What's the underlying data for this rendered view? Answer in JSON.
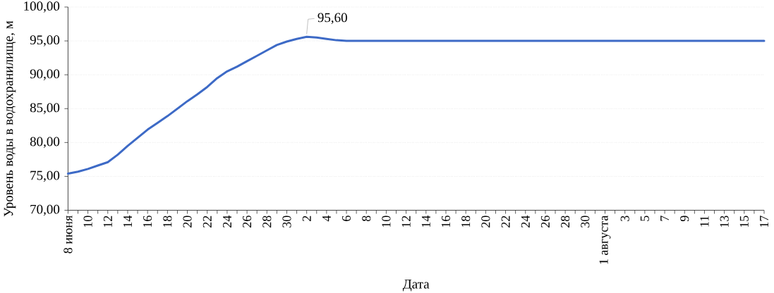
{
  "chart_data": {
    "type": "line",
    "xlabel": "Дата",
    "ylabel": "Уровень воды в водохранилище, м",
    "categories": [
      "8 июня",
      null,
      "10",
      null,
      "12",
      null,
      "14",
      null,
      "16",
      null,
      "18",
      null,
      "20",
      null,
      "22",
      null,
      "24",
      null,
      "26",
      null,
      "28",
      null,
      "30",
      null,
      "2",
      null,
      "4",
      null,
      "6",
      null,
      "8",
      null,
      "10",
      null,
      "12",
      null,
      "14",
      null,
      "16",
      null,
      "18",
      null,
      "20",
      null,
      "22",
      null,
      "24",
      null,
      "26",
      null,
      "28",
      null,
      "30",
      null,
      "1 августа",
      null,
      "3",
      null,
      "5",
      null,
      "7",
      null,
      "9",
      null,
      "11",
      null,
      "13",
      null,
      "15",
      null,
      "17"
    ],
    "values": [
      75.4,
      75.7,
      76.1,
      76.6,
      77.1,
      78.2,
      79.5,
      80.7,
      81.9,
      82.9,
      83.9,
      85.0,
      86.1,
      87.1,
      88.2,
      89.5,
      90.5,
      91.2,
      92.0,
      92.8,
      93.6,
      94.4,
      94.9,
      95.3,
      95.6,
      95.5,
      95.3,
      95.1,
      95,
      95,
      95,
      95,
      95,
      95,
      95,
      95,
      95,
      95,
      95,
      95,
      95,
      95,
      95,
      95,
      95,
      95,
      95,
      95,
      95,
      95,
      95,
      95,
      95,
      95,
      95,
      95,
      95,
      95,
      95,
      95,
      95,
      95,
      95,
      95,
      95,
      95,
      95,
      95,
      95,
      95,
      95
    ],
    "value_labels": [
      null,
      null,
      null,
      null,
      null,
      null,
      null,
      null,
      null,
      null,
      null,
      null,
      null,
      null,
      null,
      null,
      null,
      null,
      null,
      null,
      null,
      null,
      null,
      null,
      "95,60",
      null,
      null,
      null,
      null,
      null,
      null,
      null,
      null,
      null,
      null,
      null,
      null,
      null,
      null,
      null,
      null,
      null,
      null,
      null,
      null,
      null,
      null,
      null,
      null,
      null,
      null,
      null,
      null,
      null,
      null,
      null,
      null,
      null,
      null,
      null,
      null,
      null,
      null,
      null,
      null,
      null,
      null,
      null,
      null,
      null,
      null
    ],
    "color": "#3d6ac6",
    "ylim": [
      70,
      100
    ],
    "yticks": [
      {
        "value": 70,
        "label": "70,00"
      },
      {
        "value": 75,
        "label": "75,00"
      },
      {
        "value": 80,
        "label": "80,00"
      },
      {
        "value": 85,
        "label": "85,00"
      },
      {
        "value": 90,
        "label": "90,00"
      },
      {
        "value": 95,
        "label": "95,00"
      },
      {
        "value": 100,
        "label": "100,00"
      }
    ],
    "grid": "y",
    "line_style": "solid"
  }
}
